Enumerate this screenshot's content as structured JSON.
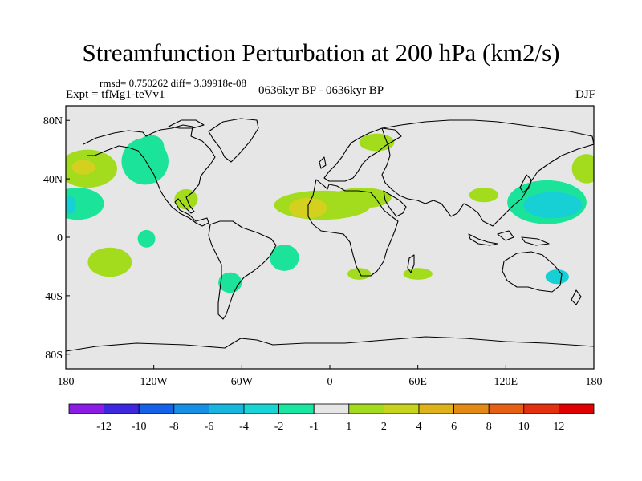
{
  "title": "Streamfunction Perturbation at 200 hPa (km2/s)",
  "stats": "rmsd= 0.750262 diff= 3.39918e-08",
  "experiment": "Expt = tfMg1-teVv1",
  "period": "0636kyr BP - 0636kyr BP",
  "season": "DJF",
  "map": {
    "projection": "cylindrical equidistant",
    "background_color": "#e6e6e6",
    "lon_range": [
      -180,
      180
    ],
    "lat_range": [
      -90,
      90
    ],
    "x_ticks": [
      {
        "lon": -180,
        "label": "180"
      },
      {
        "lon": -120,
        "label": "120W"
      },
      {
        "lon": -60,
        "label": "60W"
      },
      {
        "lon": 0,
        "label": "0"
      },
      {
        "lon": 60,
        "label": "60E"
      },
      {
        "lon": 120,
        "label": "120E"
      },
      {
        "lon": 180,
        "label": "180"
      }
    ],
    "y_ticks": [
      {
        "lat": 80,
        "label": "80N"
      },
      {
        "lat": 40,
        "label": "40N"
      },
      {
        "lat": 0,
        "label": "0"
      },
      {
        "lat": -40,
        "label": "40S"
      },
      {
        "lat": -80,
        "label": "80S"
      }
    ],
    "anomalies": [
      {
        "lon": -165,
        "lat": 47,
        "rlon": 20,
        "rlat": 13,
        "color": "#a3dc1c"
      },
      {
        "lon": -168,
        "lat": 48,
        "rlon": 8,
        "rlat": 5,
        "color": "#d4d020"
      },
      {
        "lon": -172,
        "lat": 23,
        "rlon": 18,
        "rlat": 11,
        "color": "#1ce39a"
      },
      {
        "lon": -177,
        "lat": 22,
        "rlon": 4,
        "rlat": 6,
        "color": "#17d0d5"
      },
      {
        "lon": -126,
        "lat": 52,
        "rlon": 16,
        "rlat": 16,
        "color": "#1ce39a"
      },
      {
        "lon": -122,
        "lat": 62,
        "rlon": 9,
        "rlat": 8,
        "color": "#1ce39a"
      },
      {
        "lon": -98,
        "lat": 26,
        "rlon": 8,
        "rlat": 7,
        "color": "#a3dc1c"
      },
      {
        "lon": -150,
        "lat": -17,
        "rlon": 15,
        "rlat": 10,
        "color": "#a3dc1c"
      },
      {
        "lon": -125,
        "lat": -1,
        "rlon": 6,
        "rlat": 6,
        "color": "#1ce39a"
      },
      {
        "lon": -68,
        "lat": -31,
        "rlon": 8,
        "rlat": 7,
        "color": "#1ce39a"
      },
      {
        "lon": -31,
        "lat": -14,
        "rlon": 10,
        "rlat": 9,
        "color": "#1ce39a"
      },
      {
        "lon": -5,
        "lat": 22,
        "rlon": 33,
        "rlat": 10,
        "color": "#a3dc1c"
      },
      {
        "lon": 22,
        "lat": 27,
        "rlon": 20,
        "rlat": 7,
        "color": "#a3dc1c"
      },
      {
        "lon": -15,
        "lat": 20,
        "rlon": 13,
        "rlat": 7,
        "color": "#d4d020"
      },
      {
        "lon": 32,
        "lat": 65,
        "rlon": 12,
        "rlat": 6,
        "color": "#a3dc1c"
      },
      {
        "lon": 105,
        "lat": 29,
        "rlon": 10,
        "rlat": 5,
        "color": "#a3dc1c"
      },
      {
        "lon": 148,
        "lat": 24,
        "rlon": 27,
        "rlat": 15,
        "color": "#1ce39a"
      },
      {
        "lon": 152,
        "lat": 22,
        "rlon": 20,
        "rlat": 9,
        "color": "#17d0d5"
      },
      {
        "lon": 175,
        "lat": 47,
        "rlon": 10,
        "rlat": 10,
        "color": "#a3dc1c"
      },
      {
        "lon": 20,
        "lat": -25,
        "rlon": 8,
        "rlat": 4,
        "color": "#a3dc1c"
      },
      {
        "lon": 60,
        "lat": -25,
        "rlon": 10,
        "rlat": 4,
        "color": "#a3dc1c"
      },
      {
        "lon": 155,
        "lat": -27,
        "rlon": 8,
        "rlat": 5,
        "color": "#17d0d5"
      }
    ]
  },
  "colorbar": {
    "labels": [
      "-12",
      "-10",
      "-8",
      "-6",
      "-4",
      "-2",
      "-1",
      "1",
      "2",
      "4",
      "6",
      "8",
      "10",
      "12"
    ],
    "colors": [
      "#8b1ce6",
      "#3d28e0",
      "#1462e8",
      "#1690e4",
      "#16b6df",
      "#18d4d4",
      "#19e6a0",
      "#e6e6e6",
      "#a3dc1c",
      "#c8d41c",
      "#deb31a",
      "#e38a14",
      "#e56014",
      "#e3300f",
      "#e00000"
    ]
  }
}
